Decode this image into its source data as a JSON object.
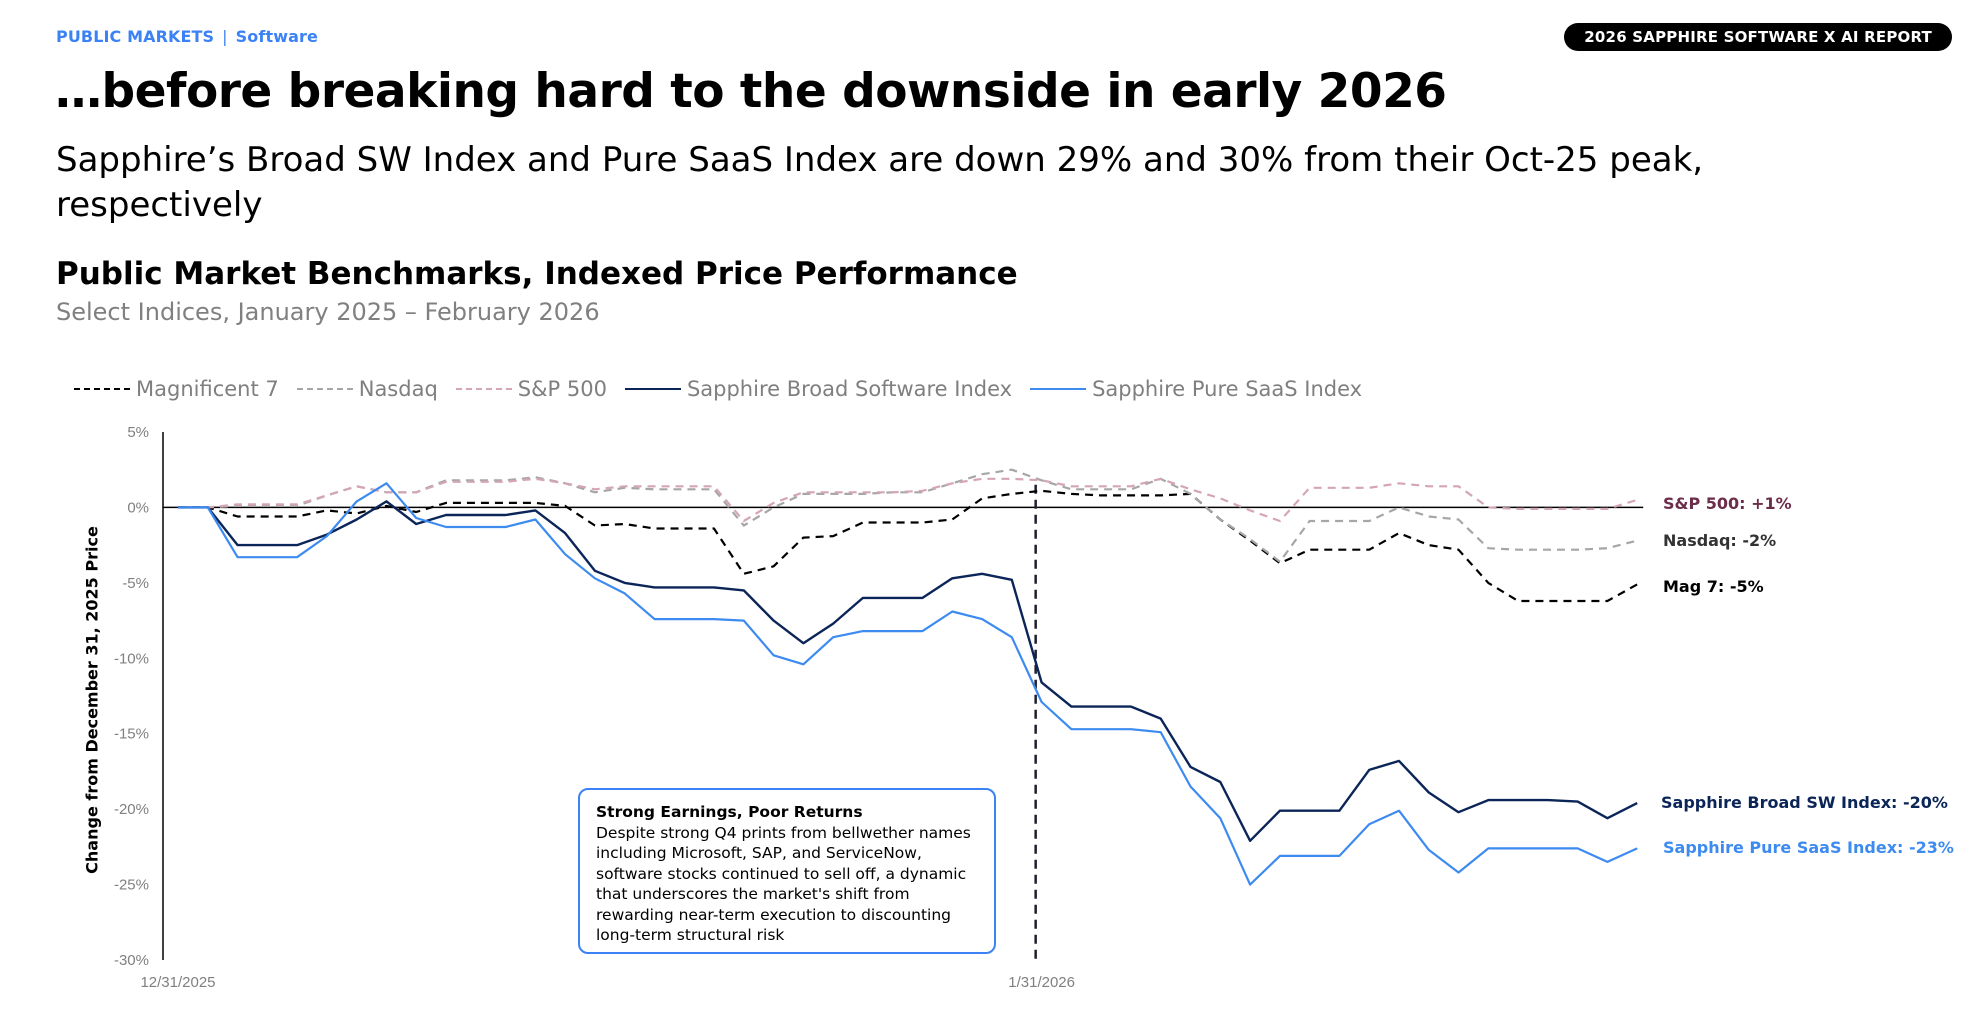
{
  "header": {
    "breadcrumb_section": "PUBLIC MARKETS",
    "breadcrumb_separator": "|",
    "breadcrumb_topic": "Software",
    "report_badge": "2026 SAPPHIRE SOFTWARE X AI REPORT",
    "headline": "…before breaking hard to the downside in early 2026",
    "subhead": "Sapphire’s Broad SW Index and Pure SaaS Index are down 29% and 30% from their Oct-25 peak, respectively"
  },
  "colors": {
    "accent_blue": "#3b82f6",
    "mag7": "#000000",
    "nasdaq": "#a6a6a6",
    "sp500": "#d4a5b8",
    "broad_sw": "#0b2559",
    "pure_saas": "#3d8bf0",
    "sp500_label": "#6b2d4a",
    "nasdaq_label": "#333333"
  },
  "annotation": {
    "title": "Strong Earnings, Poor Returns",
    "body": "Despite strong Q4 prints from bellwether names including Microsoft, SAP, and ServiceNow, software stocks continued to sell off, a dynamic that underscores the market's shift from rewarding near-term execution to discounting long-term structural risk"
  },
  "chart_data": {
    "type": "line",
    "title": "Public Market Benchmarks, Indexed Price Performance",
    "subtitle": "Select Indices, January 2025 – February 2026",
    "xlabel": "",
    "ylabel": "Change from December 31, 2025  Price",
    "ylim": [
      -30,
      5
    ],
    "yticks": [
      5,
      0,
      -5,
      -10,
      -15,
      -20,
      -25,
      -30
    ],
    "ytick_labels": [
      "5%",
      "0%",
      "-5%",
      "-10%",
      "-15%",
      "-20%",
      "-25%",
      "-30%"
    ],
    "xtick_labels": [
      {
        "label": "12/31/2025",
        "index": 0
      },
      {
        "label": "1/31/2026",
        "index": 29
      }
    ],
    "vertical_marker_index": 28.8,
    "legend_position": "top-left",
    "grid": false,
    "series": [
      {
        "key": "mag7",
        "name": "Magnificent 7",
        "style": "dashed",
        "end_label": "Mag 7: -5%",
        "values": [
          0,
          0,
          -0.6,
          -0.6,
          -0.6,
          -0.2,
          -0.4,
          0.1,
          -0.3,
          0.3,
          0.3,
          0.3,
          0.3,
          0.1,
          -1.2,
          -1.1,
          -1.4,
          -1.4,
          -1.4,
          -4.4,
          -3.9,
          -2.0,
          -1.9,
          -1.0,
          -1.0,
          -1.0,
          -0.8,
          0.6,
          0.9,
          1.1,
          0.9,
          0.8,
          0.8,
          0.8,
          0.9,
          -0.8,
          -2.2,
          -3.7,
          -2.8,
          -2.8,
          -2.8,
          -1.7,
          -2.5,
          -2.8,
          -5.0,
          -6.2,
          -6.2,
          -6.2,
          -6.2,
          -5.1
        ]
      },
      {
        "key": "nasdaq",
        "name": "Nasdaq",
        "style": "dashed",
        "end_label": "Nasdaq: -2%",
        "values": [
          0,
          0,
          0.1,
          0.1,
          0.1,
          0.8,
          1.4,
          1.0,
          1.0,
          1.8,
          1.8,
          1.8,
          2.0,
          1.6,
          1.0,
          1.3,
          1.2,
          1.2,
          1.2,
          -1.2,
          0.0,
          0.9,
          0.9,
          0.9,
          1.0,
          1.0,
          1.6,
          2.2,
          2.5,
          1.8,
          1.2,
          1.2,
          1.2,
          1.9,
          0.9,
          -0.8,
          -2.1,
          -3.6,
          -0.9,
          -0.9,
          -0.9,
          0.0,
          -0.6,
          -0.8,
          -2.7,
          -2.8,
          -2.8,
          -2.8,
          -2.7,
          -2.2
        ]
      },
      {
        "key": "sp500",
        "name": "S&P 500",
        "style": "dashed",
        "end_label": "S&P 500: +1%",
        "values": [
          0,
          0,
          0.2,
          0.2,
          0.2,
          0.8,
          1.4,
          1.0,
          1.0,
          1.7,
          1.7,
          1.7,
          1.9,
          1.6,
          1.2,
          1.4,
          1.4,
          1.4,
          1.4,
          -0.9,
          0.3,
          1.0,
          1.0,
          1.0,
          1.0,
          1.1,
          1.6,
          1.9,
          1.9,
          1.8,
          1.4,
          1.4,
          1.4,
          1.9,
          1.2,
          0.6,
          -0.2,
          -0.9,
          1.3,
          1.3,
          1.3,
          1.6,
          1.4,
          1.4,
          0,
          -0.1,
          -0.1,
          -0.1,
          -0.1,
          0.5
        ]
      },
      {
        "key": "broad_sw",
        "name": "Sapphire Broad Software Index",
        "style": "solid",
        "end_label": "Sapphire Broad SW Index: -20%",
        "values": [
          0,
          0,
          -2.5,
          -2.5,
          -2.5,
          -1.8,
          -0.8,
          0.4,
          -1.1,
          -0.5,
          -0.5,
          -0.5,
          -0.2,
          -1.7,
          -4.2,
          -5.0,
          -5.3,
          -5.3,
          -5.3,
          -5.5,
          -7.5,
          -9.0,
          -7.7,
          -6.0,
          -6.0,
          -6.0,
          -4.7,
          -4.4,
          -4.8,
          -11.6,
          -13.2,
          -13.2,
          -13.2,
          -14.0,
          -17.2,
          -18.2,
          -22.1,
          -20.1,
          -20.1,
          -20.1,
          -17.4,
          -16.8,
          -18.9,
          -20.2,
          -19.4,
          -19.4,
          -19.4,
          -19.5,
          -20.6,
          -19.6
        ]
      },
      {
        "key": "pure_saas",
        "name": "Sapphire Pure SaaS Index",
        "style": "solid",
        "end_label": "Sapphire Pure SaaS Index: -23%",
        "values": [
          0,
          0,
          -3.3,
          -3.3,
          -3.3,
          -1.9,
          0.4,
          1.6,
          -0.7,
          -1.3,
          -1.3,
          -1.3,
          -0.8,
          -3.1,
          -4.7,
          -5.7,
          -7.4,
          -7.4,
          -7.4,
          -7.5,
          -9.8,
          -10.4,
          -8.6,
          -8.2,
          -8.2,
          -8.2,
          -6.9,
          -7.4,
          -8.6,
          -12.9,
          -14.7,
          -14.7,
          -14.7,
          -14.9,
          -18.5,
          -20.6,
          -25.0,
          -23.1,
          -23.1,
          -23.1,
          -21.0,
          -20.1,
          -22.7,
          -24.2,
          -22.6,
          -22.6,
          -22.6,
          -22.6,
          -23.5,
          -22.6
        ]
      }
    ]
  }
}
